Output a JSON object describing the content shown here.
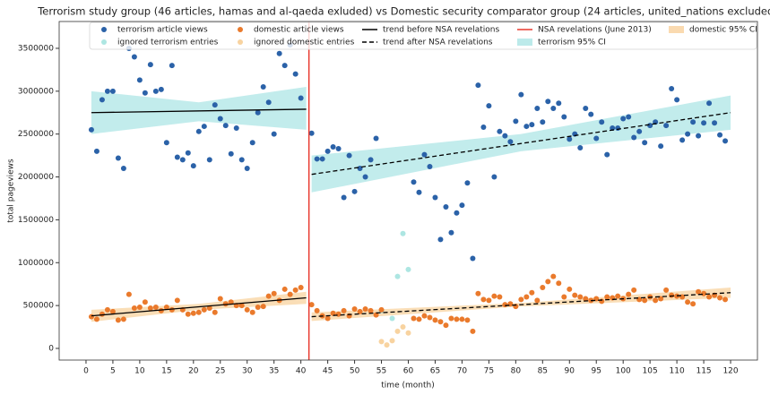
{
  "chart_data": {
    "type": "scatter",
    "title": "Terrorism study group (46 articles, hamas and al-qaeda exluded) vs Domestic security comparator group (24 articles, united_nations excluded)",
    "xlabel": "time (month)",
    "ylabel": "total pageviews",
    "xlim": [
      -5,
      125
    ],
    "ylim": [
      -136000,
      3813000
    ],
    "xticks": [
      0,
      5,
      10,
      15,
      20,
      25,
      30,
      35,
      40,
      45,
      50,
      55,
      60,
      65,
      70,
      75,
      80,
      85,
      90,
      95,
      100,
      105,
      110,
      115,
      120
    ],
    "yticks": [
      0,
      500000,
      1000000,
      1500000,
      2000000,
      2500000,
      3000000,
      3500000
    ],
    "series": [
      {
        "name": "terrorism article views",
        "color": "#2b62a8",
        "x": [
          1,
          2,
          3,
          4,
          5,
          6,
          7,
          8,
          9,
          10,
          11,
          12,
          13,
          14,
          15,
          16,
          17,
          18,
          19,
          20,
          21,
          22,
          23,
          24,
          25,
          26,
          27,
          28,
          29,
          30,
          31,
          32,
          33,
          34,
          35,
          36,
          37,
          38,
          39,
          40,
          42,
          43,
          44,
          45,
          46,
          47,
          48,
          49,
          50,
          51,
          52,
          53,
          54,
          61,
          62,
          63,
          64,
          65,
          66,
          67,
          68,
          69,
          70,
          71,
          72,
          73,
          74,
          75,
          76,
          77,
          78,
          79,
          80,
          81,
          82,
          83,
          84,
          85,
          86,
          87,
          88,
          89,
          90,
          91,
          92,
          93,
          94,
          95,
          96,
          97,
          98,
          99,
          100,
          101,
          102,
          103,
          104,
          105,
          106,
          107,
          108,
          109,
          110,
          111,
          112,
          113,
          114,
          115,
          116,
          117,
          118,
          119
        ],
        "values": [
          2550000,
          2300000,
          2900000,
          3000000,
          3000000,
          2220000,
          2100000,
          3500000,
          3400000,
          3130000,
          2980000,
          3310000,
          3000000,
          3020000,
          2400000,
          3300000,
          2230000,
          2200000,
          2280000,
          2130000,
          2530000,
          2590000,
          2200000,
          2840000,
          2680000,
          2600000,
          2270000,
          2570000,
          2200000,
          2100000,
          2400000,
          2750000,
          3050000,
          2870000,
          2500000,
          3440000,
          3300000,
          3540000,
          3200000,
          2920000,
          2510000,
          2210000,
          2210000,
          2300000,
          2350000,
          2330000,
          1760000,
          2250000,
          1830000,
          2100000,
          2000000,
          2200000,
          2450000,
          1940000,
          1820000,
          2260000,
          2120000,
          1760000,
          1270000,
          1650000,
          1350000,
          1580000,
          1670000,
          1930000,
          1050000,
          3070000,
          2580000,
          2830000,
          2000000,
          2530000,
          2480000,
          2410000,
          2650000,
          2960000,
          2590000,
          2610000,
          2800000,
          2640000,
          2880000,
          2800000,
          2860000,
          2700000,
          2440000,
          2500000,
          2340000,
          2800000,
          2730000,
          2450000,
          2640000,
          2260000,
          2570000,
          2570000,
          2680000,
          2700000,
          2460000,
          2530000,
          2400000,
          2600000,
          2640000,
          2360000,
          2600000,
          3030000,
          2900000,
          2430000,
          2500000,
          2640000,
          2480000,
          2630000,
          2860000,
          2630000,
          2490000,
          2420000
        ]
      },
      {
        "name": "ignored terrorism entries",
        "color": "#ade6e2",
        "x": [
          55,
          57,
          58,
          59,
          60
        ],
        "values": [
          440000,
          350000,
          840000,
          1340000,
          920000
        ]
      },
      {
        "name": "domestic article views",
        "color": "#ea7a2c",
        "x": [
          1,
          2,
          3,
          4,
          5,
          6,
          7,
          8,
          9,
          10,
          11,
          12,
          13,
          14,
          15,
          16,
          17,
          18,
          19,
          20,
          21,
          22,
          23,
          24,
          25,
          26,
          27,
          28,
          29,
          30,
          31,
          32,
          33,
          34,
          35,
          36,
          37,
          38,
          39,
          40,
          42,
          43,
          44,
          45,
          46,
          47,
          48,
          49,
          50,
          51,
          52,
          53,
          54,
          55,
          61,
          62,
          63,
          64,
          65,
          66,
          67,
          68,
          69,
          70,
          71,
          72,
          73,
          74,
          75,
          76,
          77,
          78,
          79,
          80,
          81,
          82,
          83,
          84,
          85,
          86,
          87,
          88,
          89,
          90,
          91,
          92,
          93,
          94,
          95,
          96,
          97,
          98,
          99,
          100,
          101,
          102,
          103,
          104,
          105,
          106,
          107,
          108,
          109,
          110,
          111,
          112,
          113,
          114,
          115,
          116,
          117,
          118,
          119
        ],
        "values": [
          370000,
          340000,
          400000,
          450000,
          430000,
          330000,
          340000,
          630000,
          470000,
          480000,
          540000,
          470000,
          480000,
          440000,
          480000,
          450000,
          560000,
          450000,
          400000,
          410000,
          420000,
          450000,
          470000,
          420000,
          580000,
          520000,
          540000,
          500000,
          500000,
          450000,
          420000,
          480000,
          490000,
          610000,
          640000,
          560000,
          690000,
          630000,
          680000,
          710000,
          510000,
          440000,
          380000,
          350000,
          410000,
          400000,
          440000,
          380000,
          460000,
          430000,
          460000,
          440000,
          390000,
          450000,
          350000,
          340000,
          380000,
          360000,
          330000,
          310000,
          270000,
          350000,
          340000,
          340000,
          330000,
          200000,
          640000,
          570000,
          560000,
          610000,
          600000,
          510000,
          520000,
          490000,
          570000,
          600000,
          650000,
          560000,
          710000,
          780000,
          840000,
          760000,
          600000,
          690000,
          620000,
          600000,
          580000,
          560000,
          580000,
          550000,
          600000,
          590000,
          610000,
          580000,
          630000,
          680000,
          570000,
          560000,
          600000,
          560000,
          580000,
          680000,
          620000,
          610000,
          600000,
          540000,
          520000,
          660000,
          640000,
          600000,
          620000,
          590000,
          570000
        ]
      },
      {
        "name": "ignored domestic entries",
        "color": "#f8d3a0",
        "x": [
          55,
          56,
          57,
          58,
          59,
          60
        ],
        "values": [
          80000,
          40000,
          90000,
          200000,
          250000,
          180000
        ]
      }
    ],
    "trends": [
      {
        "name": "trend before NSA revelations",
        "color": "#000000",
        "style": "solid",
        "pieces": [
          {
            "x": [
              1,
              41
            ],
            "values": [
              2750000,
              2790000
            ]
          },
          {
            "x": [
              1,
              41
            ],
            "values": [
              380000,
              590000
            ]
          }
        ]
      },
      {
        "name": "trend after NSA revelations",
        "color": "#000000",
        "style": "dashed",
        "pieces": [
          {
            "x": [
              42,
              120
            ],
            "values": [
              2030000,
              2750000
            ]
          },
          {
            "x": [
              42,
              120
            ],
            "values": [
              370000,
              650000
            ]
          }
        ]
      }
    ],
    "vline": {
      "name": "NSA revelations (June 2013)",
      "x": 41.5,
      "color": "#e8392e"
    },
    "bands": [
      {
        "name": "terrorism 95% CI",
        "color": "#8fdcdc",
        "pieces": [
          {
            "x": [
              1,
              21,
              41
            ],
            "lower": [
              2500000,
              2650000,
              2550000
            ],
            "upper": [
              3000000,
              2870000,
              3050000
            ]
          },
          {
            "x": [
              42,
              81,
              120
            ],
            "lower": [
              1820000,
              2300000,
              2550000
            ],
            "upper": [
              2250000,
              2500000,
              2950000
            ]
          }
        ]
      },
      {
        "name": "domestic 95% CI",
        "color": "#f6c27c",
        "pieces": [
          {
            "x": [
              1,
              21,
              41
            ],
            "lower": [
              310000,
              450000,
              520000
            ],
            "upper": [
              450000,
              520000,
              660000
            ]
          },
          {
            "x": [
              42,
              81,
              120
            ],
            "lower": [
              320000,
              490000,
              590000
            ],
            "upper": [
              420000,
              530000,
              710000
            ]
          }
        ]
      }
    ]
  }
}
